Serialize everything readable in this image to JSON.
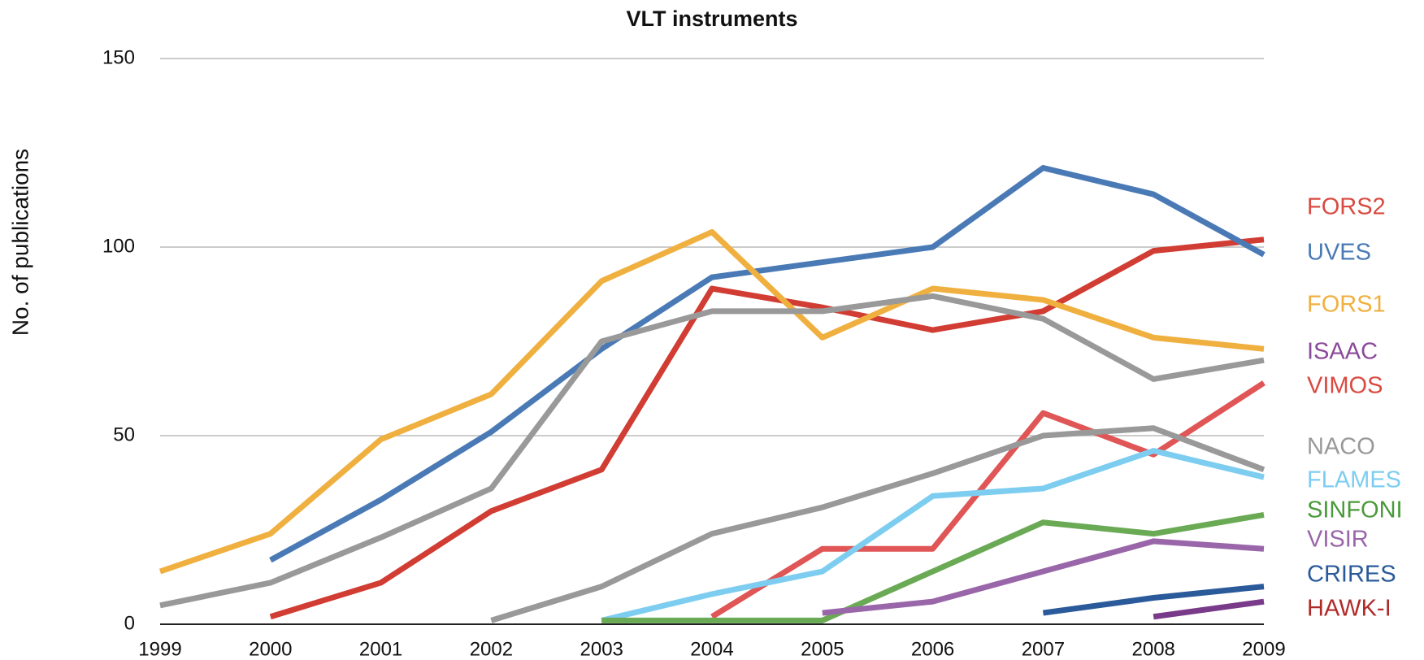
{
  "chart_data": {
    "type": "line",
    "title": "VLT instruments",
    "y_label": "No. of publications",
    "x": [
      1999,
      2000,
      2001,
      2002,
      2003,
      2004,
      2005,
      2006,
      2007,
      2008,
      2009
    ],
    "xlim": [
      1999,
      2009
    ],
    "xticks": [
      1999,
      2000,
      2001,
      2002,
      2003,
      2004,
      2005,
      2006,
      2007,
      2008,
      2009
    ],
    "ylim": [
      0,
      150
    ],
    "yticks": [
      0,
      50,
      100,
      150
    ],
    "grid": true,
    "series": [
      {
        "name": "FORS2",
        "color": "#d13c33",
        "label_color": "#d94a40",
        "values": [
          null,
          2,
          11,
          30,
          41,
          89,
          84,
          78,
          83,
          99,
          102
        ]
      },
      {
        "name": "UVES",
        "color": "#4a7ab5",
        "label_color": "#4a7ab5",
        "values": [
          null,
          17,
          33,
          51,
          73,
          92,
          96,
          100,
          121,
          114,
          98
        ]
      },
      {
        "name": "FORS1",
        "color": "#f0b040",
        "label_color": "#f0b040",
        "values": [
          14,
          24,
          49,
          61,
          91,
          104,
          76,
          89,
          86,
          76,
          73
        ]
      },
      {
        "name": "ISAAC",
        "color": "#999999",
        "label_color": "#8a4a9a",
        "values": [
          5,
          11,
          23,
          36,
          75,
          83,
          83,
          87,
          81,
          65,
          70
        ]
      },
      {
        "name": "VIMOS",
        "color": "#e05555",
        "label_color": "#d94a40",
        "values": [
          null,
          null,
          null,
          null,
          null,
          2,
          20,
          20,
          56,
          45,
          64
        ]
      },
      {
        "name": "NACO",
        "color": "#999999",
        "label_color": "#999999",
        "values": [
          null,
          null,
          null,
          1,
          10,
          24,
          31,
          40,
          50,
          52,
          41
        ]
      },
      {
        "name": "FLAMES",
        "color": "#7dcdf0",
        "label_color": "#7dcdf0",
        "values": [
          null,
          null,
          null,
          null,
          1,
          8,
          14,
          34,
          36,
          46,
          39
        ]
      },
      {
        "name": "SINFONI",
        "color": "#6aaa55",
        "label_color": "#4a9a3a",
        "values": [
          null,
          null,
          null,
          null,
          1,
          1,
          1,
          14,
          27,
          24,
          29
        ]
      },
      {
        "name": "VISIR",
        "color": "#9a66aa",
        "label_color": "#9a66aa",
        "values": [
          null,
          null,
          null,
          null,
          null,
          null,
          3,
          6,
          14,
          22,
          20
        ]
      },
      {
        "name": "CRIRES",
        "color": "#2a5a9a",
        "label_color": "#2a5a9a",
        "values": [
          null,
          null,
          null,
          null,
          null,
          null,
          null,
          null,
          3,
          7,
          10
        ]
      },
      {
        "name": "HAWK-I",
        "color": "#7a3a8a",
        "label_color": "#b02a2a",
        "values": [
          null,
          null,
          null,
          null,
          null,
          null,
          null,
          null,
          null,
          2,
          6
        ]
      }
    ]
  }
}
